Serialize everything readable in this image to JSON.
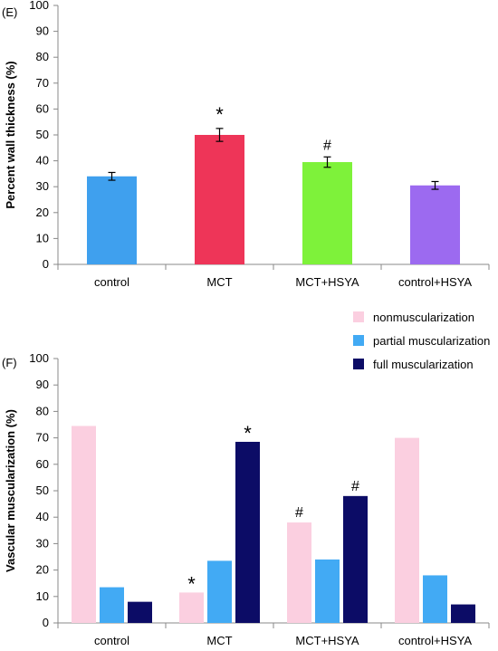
{
  "chart_data": [
    {
      "panel": "(E)",
      "type": "bar",
      "ylabel": "Percent wall thickness (%)",
      "ylim": [
        0,
        100
      ],
      "yticks": [
        0,
        10,
        20,
        30,
        40,
        50,
        60,
        70,
        80,
        90,
        100
      ],
      "categories": [
        "control",
        "MCT",
        "MCT+HSYA",
        "control+HSYA"
      ],
      "values": [
        34,
        50,
        39.5,
        30.5
      ],
      "errors": [
        1.5,
        2.5,
        2,
        1.5
      ],
      "colors": [
        "#3fa0ee",
        "#ee3558",
        "#7ef23a",
        "#9c6af0"
      ],
      "annotations": [
        "",
        "*",
        "#",
        ""
      ],
      "grid": false
    },
    {
      "panel": "(F)",
      "type": "bar",
      "ylabel": "Vascular muscularization (%)",
      "ylim": [
        0,
        100
      ],
      "yticks": [
        0,
        10,
        20,
        30,
        40,
        50,
        60,
        70,
        80,
        90,
        100
      ],
      "categories": [
        "control",
        "MCT",
        "MCT+HSYA",
        "control+HSYA"
      ],
      "legend_position": "top-right",
      "series": [
        {
          "name": "nonmuscularization",
          "color": "#fbcfe0",
          "values": [
            74.5,
            11.5,
            38,
            70
          ],
          "annotations": [
            "",
            "*",
            "#",
            ""
          ]
        },
        {
          "name": "partial muscularization",
          "color": "#42aaf4",
          "values": [
            13.5,
            23.5,
            24,
            18
          ],
          "annotations": [
            "",
            "",
            "",
            ""
          ]
        },
        {
          "name": "full muscularization",
          "color": "#0c0c66",
          "values": [
            8,
            68.5,
            48,
            7
          ],
          "annotations": [
            "",
            "*",
            "#",
            ""
          ]
        }
      ],
      "grid": false
    }
  ]
}
